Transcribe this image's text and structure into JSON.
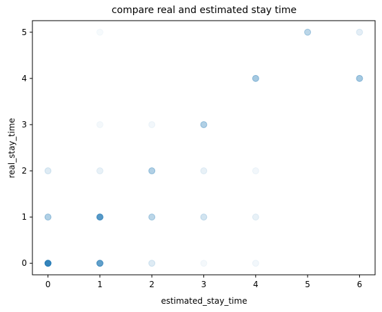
{
  "chart_data": {
    "type": "scatter",
    "title": "compare real and estimated stay time",
    "xlabel": "estimated_stay_time",
    "ylabel": "real_stay_time",
    "xlim": [
      -0.3,
      6.3
    ],
    "ylim": [
      -0.25,
      5.25
    ],
    "xticks": [
      0,
      1,
      2,
      3,
      4,
      5,
      6
    ],
    "yticks": [
      0,
      1,
      2,
      3,
      4,
      5
    ],
    "grid": false,
    "marker_color": "#1f77b4",
    "points": [
      {
        "x": 0,
        "y": 0,
        "opacity": 0.9
      },
      {
        "x": 0,
        "y": 1,
        "opacity": 0.35
      },
      {
        "x": 0,
        "y": 2,
        "opacity": 0.15
      },
      {
        "x": 1,
        "y": 0,
        "opacity": 0.7
      },
      {
        "x": 1,
        "y": 1,
        "opacity": 0.75
      },
      {
        "x": 1,
        "y": 2,
        "opacity": 0.1
      },
      {
        "x": 1,
        "y": 3,
        "opacity": 0.05
      },
      {
        "x": 1,
        "y": 5,
        "opacity": 0.04
      },
      {
        "x": 2,
        "y": 0,
        "opacity": 0.15
      },
      {
        "x": 2,
        "y": 1,
        "opacity": 0.3
      },
      {
        "x": 2,
        "y": 2,
        "opacity": 0.35
      },
      {
        "x": 2,
        "y": 3,
        "opacity": 0.06
      },
      {
        "x": 3,
        "y": 0,
        "opacity": 0.05
      },
      {
        "x": 3,
        "y": 1,
        "opacity": 0.2
      },
      {
        "x": 3,
        "y": 2,
        "opacity": 0.1
      },
      {
        "x": 3,
        "y": 3,
        "opacity": 0.35
      },
      {
        "x": 4,
        "y": 0,
        "opacity": 0.06
      },
      {
        "x": 4,
        "y": 1,
        "opacity": 0.1
      },
      {
        "x": 4,
        "y": 2,
        "opacity": 0.06
      },
      {
        "x": 4,
        "y": 4,
        "opacity": 0.4
      },
      {
        "x": 5,
        "y": 5,
        "opacity": 0.3
      },
      {
        "x": 6,
        "y": 4,
        "opacity": 0.4
      },
      {
        "x": 6,
        "y": 5,
        "opacity": 0.12
      }
    ]
  }
}
